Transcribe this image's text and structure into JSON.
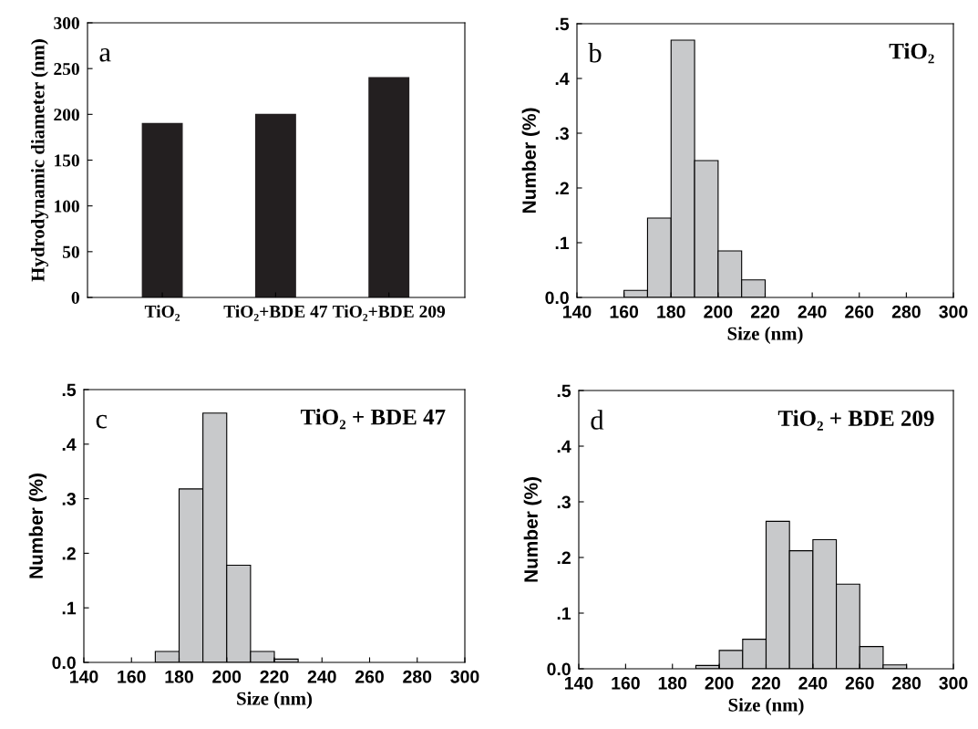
{
  "chart_data": [
    {
      "type": "bar",
      "categories": [
        "TiO₂",
        "TiO₂+BDE 47",
        "TiO₂+BDE 209"
      ],
      "values": [
        190,
        200,
        240
      ],
      "color": "#231f20",
      "ylabel": "Hydrodynamic diameter (nm)",
      "ylim": [
        0,
        300
      ],
      "yticks": [
        0,
        50,
        100,
        150,
        200,
        250,
        300
      ],
      "annotations": [
        "a"
      ],
      "grid": false,
      "legend": false
    },
    {
      "type": "histogram",
      "bins": [
        160,
        170,
        180,
        190,
        200,
        210,
        220
      ],
      "values": [
        0.013,
        0.145,
        0.47,
        0.25,
        0.085,
        0.032
      ],
      "color": "#c8c9cb",
      "xlabel": "Size (nm)",
      "ylabel": "Number (%)",
      "xlim": [
        140,
        300
      ],
      "xticks": [
        140,
        160,
        180,
        200,
        220,
        240,
        260,
        280,
        300
      ],
      "ylim": [
        0,
        0.5
      ],
      "yticks": [
        {
          "value": 0,
          "label": "0.0"
        },
        {
          "value": 0.1,
          "label": ".1"
        },
        {
          "value": 0.2,
          "label": ".2"
        },
        {
          "value": 0.3,
          "label": ".3"
        },
        {
          "value": 0.4,
          "label": ".4"
        },
        {
          "value": 0.5,
          "label": ".5"
        }
      ],
      "annotations": [
        "b",
        "TiO₂"
      ],
      "grid": false,
      "legend": false
    },
    {
      "type": "histogram",
      "bins": [
        170,
        180,
        190,
        200,
        210,
        220,
        230
      ],
      "values": [
        0.02,
        0.318,
        0.457,
        0.178,
        0.02,
        0.006
      ],
      "color": "#c8c9cb",
      "xlabel": "Size (nm)",
      "ylabel": "Number (%)",
      "xlim": [
        140,
        300
      ],
      "xticks": [
        140,
        160,
        180,
        200,
        220,
        240,
        260,
        280,
        300
      ],
      "ylim": [
        0,
        0.5
      ],
      "yticks": [
        {
          "value": 0,
          "label": "0.0"
        },
        {
          "value": 0.1,
          "label": ".1"
        },
        {
          "value": 0.2,
          "label": ".2"
        },
        {
          "value": 0.3,
          "label": ".3"
        },
        {
          "value": 0.4,
          "label": ".4"
        },
        {
          "value": 0.5,
          "label": ".5"
        }
      ],
      "annotations": [
        "c",
        "TiO₂ + BDE 47"
      ],
      "grid": false,
      "legend": false
    },
    {
      "type": "histogram",
      "bins": [
        190,
        200,
        210,
        220,
        230,
        240,
        250,
        260,
        270,
        280
      ],
      "values": [
        0.006,
        0.033,
        0.053,
        0.265,
        0.212,
        0.232,
        0.152,
        0.04,
        0.007
      ],
      "color": "#c8c9cb",
      "xlabel": "Size (nm)",
      "ylabel": "Number (%)",
      "xlim": [
        140,
        300
      ],
      "xticks": [
        140,
        160,
        180,
        200,
        220,
        240,
        260,
        280,
        300
      ],
      "ylim": [
        0,
        0.5
      ],
      "yticks": [
        {
          "value": 0,
          "label": "0.0"
        },
        {
          "value": 0.1,
          "label": ".1"
        },
        {
          "value": 0.2,
          "label": ".2"
        },
        {
          "value": 0.3,
          "label": ".3"
        },
        {
          "value": 0.4,
          "label": ".4"
        },
        {
          "value": 0.5,
          "label": ".5"
        }
      ],
      "annotations": [
        "d",
        "TiO₂ + BDE 209"
      ],
      "grid": false,
      "legend": false
    }
  ]
}
